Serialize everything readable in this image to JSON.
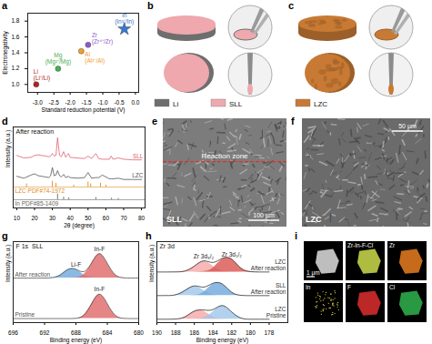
{
  "chart_data": [
    {
      "panel": "a",
      "type": "scatter",
      "x_label": "Standard reduction potential (V)",
      "y_label": "Electronegativity",
      "xlim": [
        -3.3,
        0.1
      ],
      "xticks": [
        {
          "value": -3,
          "label": "-3.0"
        },
        -2.5,
        {
          "value": -2,
          "label": "-2.0"
        },
        -1.5,
        {
          "value": -1,
          "label": "-1.0"
        },
        -0.5,
        {
          "value": 0,
          "label": "0.0"
        }
      ],
      "ylim": [
        0.9,
        1.9
      ],
      "yticks": [
        {
          "value": 1,
          "label": "1.0"
        },
        1.2,
        1.4,
        1.6,
        1.8
      ],
      "series": [
        {
          "name": "Li",
          "annotation": "(Li⁺/Li)",
          "color": "#b22222",
          "marker": "circle",
          "x": [
            -3.04
          ],
          "values": [
            1.0
          ]
        },
        {
          "name": "Mg",
          "annotation": "(Mg²⁺/Mg)",
          "color": "#4caf50",
          "marker": "circle",
          "x": [
            -2.37
          ],
          "values": [
            1.2
          ]
        },
        {
          "name": "Zr",
          "annotation": "(Zr⁴⁺/Zr)",
          "color": "#8e5cc8",
          "marker": "circle",
          "x": [
            -1.45
          ],
          "values": [
            1.5
          ]
        },
        {
          "name": "Al",
          "annotation": "(Al³⁺/Al)",
          "color": "#f0a030",
          "marker": "circle",
          "x": [
            -1.66
          ],
          "values": [
            1.42
          ]
        },
        {
          "name": "In",
          "annotation": "(In³⁺/In)",
          "color": "#3a78d0",
          "marker": "star",
          "x": [
            -0.34
          ],
          "values": [
            1.7
          ]
        }
      ]
    },
    {
      "panel": "d",
      "type": "line",
      "annotation": "After reaction",
      "x_label": "2θ (degree)",
      "y_label": "Intensity (a.u.)",
      "tick_labels": "x",
      "xlim": [
        8,
        82
      ],
      "xticks": [
        10,
        20,
        30,
        40,
        50,
        60,
        70,
        80
      ],
      "ylim": [
        -1.3,
        11.5
      ],
      "x": [
        10,
        14,
        18,
        20,
        22,
        24,
        26,
        28,
        29,
        30,
        31,
        32,
        32.9,
        34,
        35,
        36.3,
        37.5,
        39,
        40,
        44,
        48,
        50,
        52,
        54.4,
        56,
        58,
        62,
        63,
        64,
        67,
        70,
        75,
        80
      ],
      "series": [
        {
          "name": "SLL",
          "type": "line",
          "color": "#e06070",
          "values": [
            7.0,
            6.6,
            6.7,
            7.0,
            7.1,
            7.0,
            6.9,
            6.8,
            6.9,
            7.3,
            6.9,
            7.0,
            9.8,
            7.0,
            6.8,
            7.6,
            6.7,
            7.3,
            6.7,
            6.6,
            6.5,
            6.9,
            6.5,
            7.3,
            6.5,
            6.4,
            6.4,
            6.9,
            6.4,
            6.6,
            6.4,
            6.3,
            6.3
          ]
        },
        {
          "name": "LZC",
          "type": "line",
          "color": "#555555",
          "values": [
            3.7,
            3.4,
            3.9,
            4.1,
            3.8,
            3.7,
            3.6,
            3.5,
            3.8,
            5.1,
            3.8,
            3.9,
            4.6,
            3.8,
            3.6,
            4.0,
            3.5,
            3.7,
            3.5,
            3.4,
            3.5,
            4.3,
            3.4,
            3.5,
            3.5,
            3.9,
            3.3,
            3.3,
            3.3,
            3.4,
            3.2,
            3.2,
            3.2
          ]
        },
        {
          "name": "LZC PDF#74-1972",
          "type": "stick",
          "color": "#e08a20",
          "baseline": 2,
          "x": [
            15.5,
            30,
            32,
            42,
            50,
            51.5,
            57,
            60
          ],
          "values": [
            2.5,
            2.9,
            2.6,
            2.3,
            2.8,
            2.5,
            2.6,
            2.3
          ]
        },
        {
          "name": "In PDF#85-1409",
          "type": "stick",
          "color": "#666666",
          "baseline": 0,
          "x": [
            32.9,
            36.3,
            39.2,
            54.4,
            63.2,
            67
          ],
          "values": [
            0.9,
            0.4,
            0.3,
            0.35,
            0.25,
            0.2
          ]
        }
      ]
    },
    {
      "panel": "g",
      "type": "area",
      "title": "F 1s  SLL",
      "x_label": "Binding energy (eV)",
      "y_label": "Intensity (a.u.)",
      "tick_labels": "x",
      "xlim": [
        696,
        680
      ],
      "xticks": [
        696,
        692,
        688,
        684,
        680
      ],
      "ylim": [
        -0.5,
        9.5
      ],
      "x": [
        680,
        681,
        682,
        683,
        684,
        685,
        686,
        687,
        688,
        689,
        690,
        691,
        692,
        693,
        694,
        695,
        696
      ],
      "series": [
        {
          "name": "Li-F",
          "type": "area",
          "color": "#6fa8dc",
          "baseline": 5,
          "values": [
            5,
            5,
            5,
            5,
            5,
            5,
            5.05,
            5.39,
            6.06,
            6.06,
            5.39,
            5.05,
            5,
            5,
            5,
            5,
            5
          ]
        },
        {
          "name": "In-F",
          "type": "area",
          "color": "#e06666",
          "baseline": 5,
          "values": [
            5,
            5,
            5.03,
            5.41,
            6.82,
            8,
            6.82,
            5.41,
            5.03,
            5,
            5,
            5,
            5,
            5,
            5,
            5,
            5
          ]
        },
        {
          "name": "In-F",
          "type": "area",
          "color": "#e06666",
          "baseline": 0,
          "values": [
            0,
            0,
            0.03,
            0.41,
            1.82,
            3,
            1.82,
            0.41,
            0.03,
            0,
            0,
            0,
            0,
            0,
            0,
            0,
            0
          ]
        },
        {
          "name": "After reaction",
          "type": "line",
          "color": "#555555",
          "values": [
            5,
            5,
            5.03,
            5.41,
            6.82,
            8,
            6.87,
            5.8,
            6.09,
            6.06,
            5.39,
            5.05,
            5,
            5,
            5,
            5,
            5
          ]
        },
        {
          "name": "Pristine",
          "type": "line",
          "color": "#555555",
          "values": [
            0,
            0,
            0.03,
            0.41,
            1.82,
            3,
            1.82,
            0.41,
            0.03,
            0,
            0,
            0,
            0,
            0,
            0,
            0,
            0
          ]
        }
      ]
    },
    {
      "panel": "h",
      "type": "area",
      "title": "Zr 3d",
      "x_label": "Binding energy (eV)",
      "y_label": "Intensity (a.u.)",
      "tick_labels": "x",
      "xlim": [
        190,
        176
      ],
      "xticks": [
        190,
        188,
        186,
        184,
        182,
        180,
        178
      ],
      "ylim": [
        -0.5,
        11.5
      ],
      "x": [
        178,
        179,
        180,
        181,
        182,
        183,
        184,
        185,
        186,
        187,
        188,
        189,
        190
      ],
      "series": [
        {
          "name": "Zr 3d₃/₂",
          "type": "area",
          "color": "#f4a6a6",
          "baseline": 7,
          "values": [
            7,
            7,
            7,
            7,
            7.01,
            7.14,
            7.86,
            8.6,
            7.86,
            7.14,
            7.01,
            7,
            7
          ]
        },
        {
          "name": "Zr 3d₅/₂",
          "type": "area",
          "color": "#d9534f",
          "baseline": 7,
          "values": [
            7,
            7,
            7.05,
            7.55,
            8.89,
            8.89,
            7.55,
            7.05,
            7,
            7,
            7,
            7,
            7
          ]
        },
        {
          "type": "area",
          "color": "#9fc5e8",
          "baseline": 3.5,
          "values": [
            3.5,
            3.5,
            3.5,
            3.5,
            3.5,
            3.51,
            3.62,
            4.26,
            4.9,
            4.26,
            3.62,
            3.51,
            3.5
          ]
        },
        {
          "type": "area",
          "color": "#6fa8dc",
          "baseline": 3.5,
          "values": [
            3.5,
            3.5,
            3.5,
            3.54,
            4.0,
            5.21,
            5.21,
            4.0,
            3.54,
            3.5,
            3.5,
            3.5,
            3.5
          ]
        },
        {
          "type": "area",
          "color": "#f4a6a6",
          "baseline": 0,
          "values": [
            0,
            0,
            0,
            0,
            0,
            0.03,
            0.35,
            1.2,
            1.2,
            0.35,
            0.03,
            0,
            0
          ]
        },
        {
          "type": "area",
          "color": "#9fc5e8",
          "baseline": 0,
          "values": [
            0,
            0,
            0,
            0.17,
            1.08,
            2,
            1.08,
            0.17,
            0,
            0,
            0,
            0,
            0
          ]
        },
        {
          "name": "LZC\nAfter reaction",
          "type": "line",
          "color": "#333333",
          "values": [
            7,
            7,
            7.05,
            7.55,
            8.9,
            9.03,
            8.41,
            8.65,
            7.86,
            7.14,
            7.01,
            7,
            7
          ]
        },
        {
          "name": "SLL\nAfter reaction",
          "type": "line",
          "color": "#333333",
          "values": [
            3.5,
            3.5,
            3.5,
            3.54,
            4.0,
            5.22,
            5.33,
            4.76,
            4.94,
            4.26,
            3.62,
            3.51,
            3.5
          ]
        },
        {
          "name": "LZC\nPristine",
          "type": "line",
          "color": "#333333",
          "values": [
            0,
            0,
            0,
            0.17,
            1.08,
            2.03,
            1.43,
            1.37,
            1.2,
            0.35,
            0.03,
            0,
            0
          ]
        }
      ]
    }
  ],
  "images": [
    {
      "panel": "b",
      "legend": [
        {
          "name": "Li",
          "color": "#6e6e6e"
        },
        {
          "name": "SLL",
          "color": "#eea8ae"
        }
      ]
    },
    {
      "panel": "c",
      "legend": [
        {
          "name": "LZC",
          "color": "#c87a34"
        }
      ]
    },
    {
      "panel": "e",
      "label": "SLL",
      "annotation": "Reaction zone",
      "scale_bar": "100 μm"
    },
    {
      "panel": "f",
      "label": "LZC",
      "scale_bar": "50 μm"
    },
    {
      "panel": "i",
      "scale_bar": "1 μm",
      "maps": [
        {
          "color": "#d8d8d8"
        },
        {
          "name": "Zr-In-F-Cl",
          "color": "#c6d64a"
        },
        {
          "name": "Zr",
          "color": "#e07a1f"
        },
        {
          "name": "In",
          "color": "#e8d63c"
        },
        {
          "name": "F",
          "color": "#d62c2c"
        },
        {
          "name": "Cl",
          "color": "#2fae4c"
        }
      ]
    }
  ]
}
